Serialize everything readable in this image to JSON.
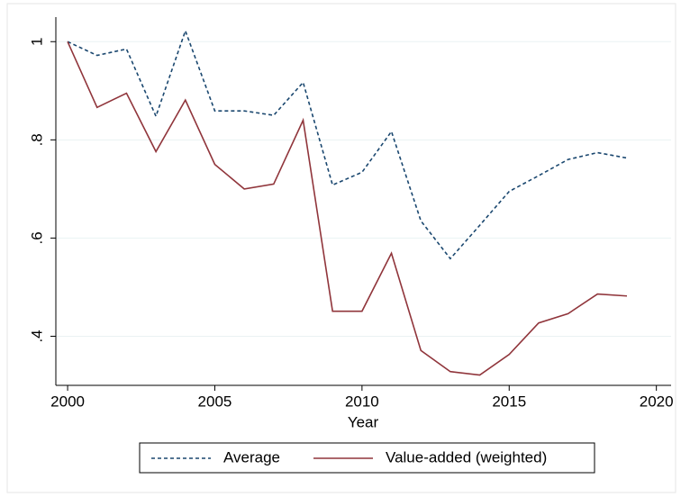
{
  "chart_data": {
    "type": "line",
    "x_label": "Year",
    "x": [
      2000,
      2001,
      2002,
      2003,
      2004,
      2005,
      2006,
      2007,
      2008,
      2009,
      2010,
      2011,
      2012,
      2013,
      2014,
      2015,
      2016,
      2017,
      2018,
      2019
    ],
    "series": [
      {
        "name": "Average",
        "color": "#1a476f",
        "dash": "dashed",
        "values": [
          1,
          0.972,
          0.985,
          0.848,
          1.022,
          0.859,
          0.859,
          0.85,
          0.917,
          0.708,
          0.734,
          0.817,
          0.635,
          0.558,
          0.626,
          0.695,
          0.727,
          0.76,
          0.774,
          0.763
        ]
      },
      {
        "name": "Value-added (weighted)",
        "color": "#90353b",
        "dash": "solid",
        "values": [
          1,
          0.866,
          0.895,
          0.776,
          0.881,
          0.75,
          0.7,
          0.71,
          0.84,
          0.451,
          0.451,
          0.569,
          0.371,
          0.328,
          0.321,
          0.363,
          0.427,
          0.446,
          0.486,
          0.482
        ]
      }
    ],
    "xlim": [
      1999.6,
      2020.5
    ],
    "xticks": [
      2000,
      2005,
      2010,
      2015,
      2020
    ],
    "ylim": [
      0.3,
      1.05
    ],
    "yticks": [
      {
        "value": 0.4,
        "label": ".4"
      },
      {
        "value": 0.6,
        "label": ".6"
      },
      {
        "value": 0.8,
        "label": ".8"
      },
      1
    ],
    "grid": true,
    "legend": "bottom"
  }
}
